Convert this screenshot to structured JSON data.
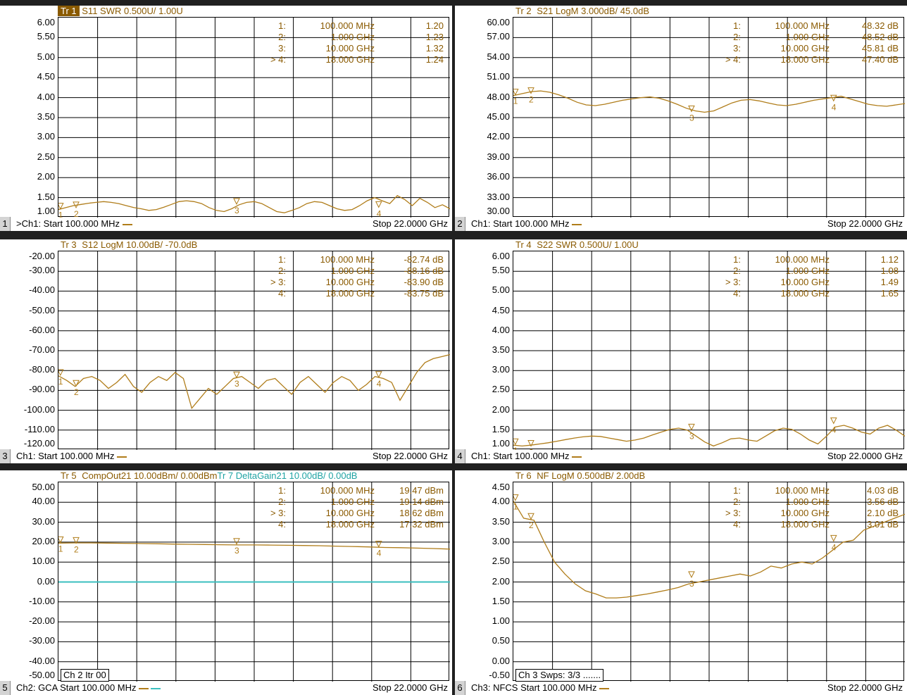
{
  "colors": {
    "trace": "#b07d1a",
    "trace2": "#3bbfbf",
    "grid": "#000000"
  },
  "panels": [
    {
      "id": "p1",
      "title": {
        "num": "Tr 1",
        "text": "S11 SWR 0.500U/ 1.00U",
        "selected": true
      },
      "title2": null,
      "y_labels": [
        "6.00",
        "5.50",
        "5.00",
        "4.50",
        "4.00",
        "3.50",
        "3.00",
        "2.50",
        "2.00",
        "1.50",
        "1.00"
      ],
      "markers": [
        {
          "i": "1:",
          "f": "100.000 MHz",
          "v": "1.20"
        },
        {
          "i": "2:",
          "f": "1.000 GHz",
          "v": "1.23"
        },
        {
          "i": "3:",
          "f": "10.000 GHz",
          "v": "1.32"
        },
        {
          "i": "> 4:",
          "f": "18.000 GHz",
          "v": "1.24"
        }
      ],
      "footer": {
        "num": "1",
        "ch": ">Ch1:",
        "start": "Start 100.000 MHz",
        "stop": "Stop 22.0000 GHz"
      },
      "box": null,
      "ylim": [
        1.0,
        6.0
      ],
      "trace": [
        1.2,
        1.25,
        1.3,
        1.33,
        1.36,
        1.38,
        1.4,
        1.38,
        1.35,
        1.3,
        1.25,
        1.22,
        1.18,
        1.2,
        1.26,
        1.33,
        1.4,
        1.42,
        1.4,
        1.35,
        1.25,
        1.18,
        1.15,
        1.22,
        1.32,
        1.38,
        1.4,
        1.35,
        1.25,
        1.15,
        1.12,
        1.18,
        1.25,
        1.35,
        1.4,
        1.38,
        1.3,
        1.22,
        1.18,
        1.2,
        1.3,
        1.42,
        1.5,
        1.42,
        1.35,
        1.55,
        1.45,
        1.3,
        1.48,
        1.38,
        1.25,
        1.32,
        1.22
      ],
      "marker_pos": [
        {
          "x": 0.005,
          "y": 1.2,
          "n": "1"
        },
        {
          "x": 0.045,
          "y": 1.23,
          "n": "2"
        },
        {
          "x": 0.455,
          "y": 1.32,
          "n": "3"
        },
        {
          "x": 0.818,
          "y": 1.24,
          "n": "4"
        }
      ]
    },
    {
      "id": "p2",
      "title": {
        "num": "Tr 2",
        "text": "S21 LogM 3.000dB/ 45.0dB",
        "selected": false
      },
      "title2": null,
      "y_labels": [
        "60.00",
        "57.00",
        "54.00",
        "51.00",
        "48.00",
        "45.00",
        "42.00",
        "39.00",
        "36.00",
        "33.00",
        "30.00"
      ],
      "markers": [
        {
          "i": "1:",
          "f": "100.000 MHz",
          "v": "48.32 dB"
        },
        {
          "i": "2:",
          "f": "1.000 GHz",
          "v": "48.52 dB"
        },
        {
          "i": "3:",
          "f": "10.000 GHz",
          "v": "45.81 dB"
        },
        {
          "i": "> 4:",
          "f": "18.000 GHz",
          "v": "47.40 dB"
        }
      ],
      "footer": {
        "num": "2",
        "ch": "Ch1:",
        "start": "Start 100.000 MHz",
        "stop": "Stop 22.0000 GHz"
      },
      "box": null,
      "ylim": [
        30.0,
        60.0
      ],
      "trace": [
        48.3,
        48.6,
        48.9,
        49.0,
        48.8,
        48.4,
        47.9,
        47.3,
        46.9,
        46.8,
        47.0,
        47.3,
        47.6,
        47.8,
        48.0,
        48.1,
        47.9,
        47.5,
        47.0,
        46.4,
        46.0,
        45.8,
        46.0,
        46.6,
        47.2,
        47.6,
        47.7,
        47.5,
        47.2,
        46.9,
        46.8,
        47.0,
        47.3,
        47.6,
        47.8,
        48.0,
        48.2,
        47.8,
        47.4,
        47.0,
        46.8,
        46.7,
        46.9,
        47.1
      ],
      "marker_pos": [
        {
          "x": 0.005,
          "y": 48.32,
          "n": "1"
        },
        {
          "x": 0.045,
          "y": 48.52,
          "n": "2"
        },
        {
          "x": 0.455,
          "y": 45.81,
          "n": "3"
        },
        {
          "x": 0.818,
          "y": 47.4,
          "n": "4"
        }
      ]
    },
    {
      "id": "p3",
      "title": {
        "num": "Tr 3",
        "text": "S12 LogM 10.00dB/ -70.0dB",
        "selected": false
      },
      "title2": null,
      "y_labels": [
        "-20.00",
        "-30.00",
        "-40.00",
        "-50.00",
        "-60.00",
        "-70.00",
        "-80.00",
        "-90.00",
        "-100.00",
        "-110.00",
        "-120.00"
      ],
      "markers": [
        {
          "i": "1:",
          "f": "100.000 MHz",
          "v": "-82.74 dB"
        },
        {
          "i": "2:",
          "f": "1.000 GHz",
          "v": "-88.16 dB"
        },
        {
          "i": "> 3:",
          "f": "10.000 GHz",
          "v": "-83.90 dB"
        },
        {
          "i": "4:",
          "f": "18.000 GHz",
          "v": "-83.75 dB"
        }
      ],
      "footer": {
        "num": "3",
        "ch": "Ch1:",
        "start": "Start 100.000 MHz",
        "stop": "Stop 22.0000 GHz"
      },
      "box": null,
      "ylim": [
        -120.0,
        -20.0
      ],
      "trace": [
        -82.7,
        -85,
        -88,
        -84,
        -83,
        -85,
        -89,
        -86,
        -82,
        -88,
        -91,
        -86,
        -83,
        -85,
        -81,
        -84,
        -99,
        -94,
        -89,
        -92,
        -88,
        -84,
        -83,
        -86,
        -89,
        -85,
        -84,
        -88,
        -92,
        -86,
        -83,
        -87,
        -91,
        -86,
        -83,
        -85,
        -90,
        -87,
        -83,
        -84,
        -86,
        -95,
        -88,
        -81,
        -76,
        -74,
        -73,
        -72
      ],
      "marker_pos": [
        {
          "x": 0.005,
          "y": -82.74,
          "n": "1"
        },
        {
          "x": 0.045,
          "y": -88.16,
          "n": "2"
        },
        {
          "x": 0.455,
          "y": -83.9,
          "n": "3"
        },
        {
          "x": 0.818,
          "y": -83.75,
          "n": "4"
        }
      ]
    },
    {
      "id": "p4",
      "title": {
        "num": "Tr 4",
        "text": "S22 SWR 0.500U/ 1.00U",
        "selected": false
      },
      "title2": null,
      "y_labels": [
        "6.00",
        "5.50",
        "5.00",
        "4.50",
        "4.00",
        "3.50",
        "3.00",
        "2.50",
        "2.00",
        "1.50",
        "1.00"
      ],
      "markers": [
        {
          "i": "1:",
          "f": "100.000 MHz",
          "v": "1.12"
        },
        {
          "i": "2:",
          "f": "1.000 GHz",
          "v": "1.08"
        },
        {
          "i": "> 3:",
          "f": "10.000 GHz",
          "v": "1.49"
        },
        {
          "i": "4:",
          "f": "18.000 GHz",
          "v": "1.65"
        }
      ],
      "footer": {
        "num": "4",
        "ch": "Ch1:",
        "start": "Start 100.000 MHz",
        "stop": "Stop 22.0000 GHz"
      },
      "box": null,
      "ylim": [
        1.0,
        6.0
      ],
      "trace": [
        1.12,
        1.1,
        1.12,
        1.15,
        1.18,
        1.22,
        1.26,
        1.3,
        1.33,
        1.35,
        1.34,
        1.3,
        1.26,
        1.22,
        1.25,
        1.3,
        1.38,
        1.45,
        1.52,
        1.55,
        1.5,
        1.35,
        1.2,
        1.1,
        1.18,
        1.28,
        1.3,
        1.25,
        1.22,
        1.35,
        1.48,
        1.55,
        1.52,
        1.4,
        1.25,
        1.15,
        1.35,
        1.58,
        1.62,
        1.55,
        1.45,
        1.4,
        1.55,
        1.62,
        1.5,
        1.35
      ],
      "marker_pos": [
        {
          "x": 0.005,
          "y": 1.12,
          "n": "1"
        },
        {
          "x": 0.045,
          "y": 1.08,
          "n": "2"
        },
        {
          "x": 0.455,
          "y": 1.49,
          "n": "3"
        },
        {
          "x": 0.818,
          "y": 1.65,
          "n": "4"
        }
      ]
    },
    {
      "id": "p5",
      "title": {
        "num": "Tr 5",
        "text": "CompOut21 10.00dBm/ 0.00dBm",
        "selected": false
      },
      "title2": {
        "num": "Tr 7",
        "text": "DeltaGain21 10.00dB/ 0.00dB"
      },
      "y_labels": [
        "50.00",
        "40.00",
        "30.00",
        "20.00",
        "10.00",
        "0.00",
        "-10.00",
        "-20.00",
        "-30.00",
        "-40.00",
        "-50.00"
      ],
      "markers": [
        {
          "i": "1:",
          "f": "100.000 MHz",
          "v": "19.47 dBm"
        },
        {
          "i": "2:",
          "f": "1.000 GHz",
          "v": "19.14 dBm"
        },
        {
          "i": "> 3:",
          "f": "10.000 GHz",
          "v": "18.62 dBm"
        },
        {
          "i": "4:",
          "f": "18.000 GHz",
          "v": "17.32 dBm"
        }
      ],
      "footer": {
        "num": "5",
        "ch": "Ch2: GCA",
        "start": "Start 100.000 MHz",
        "stop": "Stop 22.0000 GHz"
      },
      "box": "Ch 2  Itr 00",
      "ylim": [
        -50.0,
        50.0
      ],
      "trace": [
        19.5,
        19.6,
        19.6,
        19.5,
        19.4,
        19.3,
        19.2,
        19.0,
        18.9,
        18.8,
        18.7,
        18.6,
        18.6,
        18.5,
        18.4,
        18.3,
        18.2,
        18.0,
        17.8,
        17.6,
        17.3,
        17.2,
        17.0,
        16.8,
        16.5
      ],
      "trace2": [
        0,
        0
      ],
      "marker_pos": [
        {
          "x": 0.005,
          "y": 19.47,
          "n": "1"
        },
        {
          "x": 0.045,
          "y": 19.14,
          "n": "2"
        },
        {
          "x": 0.455,
          "y": 18.62,
          "n": "3"
        },
        {
          "x": 0.818,
          "y": 17.32,
          "n": "4"
        }
      ]
    },
    {
      "id": "p6",
      "title": {
        "num": "Tr 6",
        "text": "NF LogM 0.500dB/ 2.00dB",
        "selected": false
      },
      "title2": null,
      "y_labels": [
        "4.50",
        "4.00",
        "3.50",
        "3.00",
        "2.50",
        "2.00",
        "1.50",
        "1.00",
        "0.50",
        "0.00",
        "-0.50"
      ],
      "markers": [
        {
          "i": "1:",
          "f": "100.000 MHz",
          "v": "4.03 dB"
        },
        {
          "i": "2:",
          "f": "1.000 GHz",
          "v": "3.56 dB"
        },
        {
          "i": "> 3:",
          "f": "10.000 GHz",
          "v": "2.10 dB"
        },
        {
          "i": "4:",
          "f": "18.000 GHz",
          "v": "3.01 dB"
        }
      ],
      "footer": {
        "num": "6",
        "ch": "Ch3: NFCS",
        "start": "Start 100.000 MHz",
        "stop": "Stop 22.0000 GHz"
      },
      "box": "Ch 3  Swps: 3/3 .......",
      "ylim": [
        -0.5,
        4.5
      ],
      "trace": [
        4.03,
        3.6,
        3.55,
        3.0,
        2.5,
        2.2,
        1.95,
        1.78,
        1.7,
        1.6,
        1.6,
        1.62,
        1.66,
        1.7,
        1.75,
        1.8,
        1.86,
        1.95,
        2.0,
        2.05,
        2.1,
        2.15,
        2.2,
        2.15,
        2.25,
        2.4,
        2.35,
        2.45,
        2.5,
        2.45,
        2.6,
        2.8,
        3.0,
        3.05,
        3.3,
        3.4,
        3.5,
        3.6,
        3.7
      ],
      "marker_pos": [
        {
          "x": 0.005,
          "y": 4.03,
          "n": "1"
        },
        {
          "x": 0.045,
          "y": 3.56,
          "n": "2"
        },
        {
          "x": 0.455,
          "y": 2.1,
          "n": "3"
        },
        {
          "x": 0.818,
          "y": 3.01,
          "n": "4"
        }
      ]
    }
  ]
}
